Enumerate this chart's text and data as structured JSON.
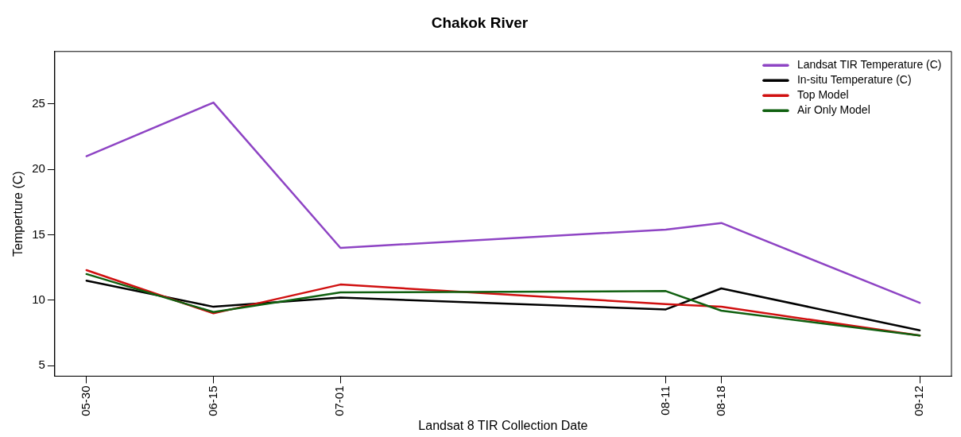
{
  "chart_data": {
    "type": "line",
    "title": "Chakok River",
    "xlabel": "Landsat 8 TIR Collection Date",
    "ylabel": "Temperture (C)",
    "x": [
      "--05-30",
      "--06-15",
      "--07-01",
      "--08-11",
      "--08-18",
      "--09-12"
    ],
    "xlim": [
      "--05-26",
      "--09-16"
    ],
    "xticks": [
      {
        "value": "--05-30",
        "label": "05-30"
      },
      {
        "value": "--06-15",
        "label": "06-15"
      },
      {
        "value": "--07-01",
        "label": "07-01"
      },
      {
        "value": "--08-11",
        "label": "08-11"
      },
      {
        "value": "--08-18",
        "label": "08-18"
      },
      {
        "value": "--09-12",
        "label": "09-12"
      }
    ],
    "ylim": [
      4.2,
      29
    ],
    "yticks": [
      5,
      10,
      15,
      20,
      25
    ],
    "series": [
      {
        "name": "Landsat TIR Temperature (C)",
        "color": "#8e44c4",
        "values": [
          21.0,
          25.1,
          14.0,
          15.4,
          15.9,
          9.8
        ]
      },
      {
        "name": "In-situ Temperature (C)",
        "color": "#000000",
        "values": [
          11.5,
          9.5,
          10.2,
          9.3,
          10.9,
          7.7
        ]
      },
      {
        "name": "Top Model",
        "color": "#d01010",
        "values": [
          12.3,
          9.0,
          11.2,
          9.7,
          9.5,
          7.3
        ]
      },
      {
        "name": "Air Only Model",
        "color": "#106010",
        "values": [
          12.0,
          9.1,
          10.6,
          10.7,
          9.2,
          7.3
        ]
      }
    ],
    "legend": "top right",
    "grid": false,
    "marker": "none",
    "line_style": "solid"
  }
}
